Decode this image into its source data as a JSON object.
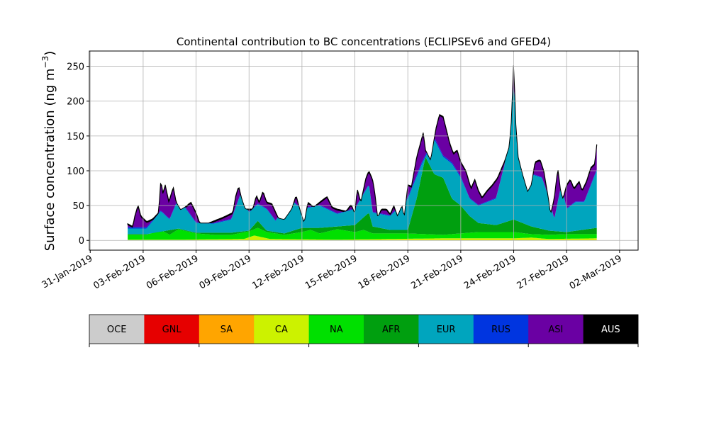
{
  "chart_data": {
    "type": "area",
    "title": "Continental contribution to BC concentrations (ECLIPSEv6 and GFED4)",
    "ylabel_main": "Surface concentration (ng m",
    "ylabel_sup": "−3",
    "ylabel_close": ")",
    "xlabel": "",
    "ylim": [
      -14,
      272
    ],
    "xlim_days": [
      "31-Jan-2019",
      "02-Mar-2019"
    ],
    "grid": true,
    "y_ticks": [
      0,
      50,
      100,
      150,
      200,
      250
    ],
    "x_ticks": [
      "31-Jan-2019",
      "03-Feb-2019",
      "06-Feb-2019",
      "09-Feb-2019",
      "12-Feb-2019",
      "15-Feb-2019",
      "18-Feb-2019",
      "21-Feb-2019",
      "24-Feb-2019",
      "27-Feb-2019",
      "02-Mar-2019"
    ],
    "x_tick_days": [
      0,
      3,
      6,
      9,
      12,
      15,
      18,
      21,
      24,
      27,
      30
    ],
    "x_day0": "31-Jan-2019",
    "series_order": [
      "CA",
      "NA",
      "AFR",
      "EUR",
      "RUS",
      "ASI",
      "AUS"
    ],
    "legend": [
      {
        "name": "OCE",
        "color": "#cccccc"
      },
      {
        "name": "GNL",
        "color": "#e60000"
      },
      {
        "name": "SA",
        "color": "#ffa500"
      },
      {
        "name": "CA",
        "color": "#ccf200"
      },
      {
        "name": "NA",
        "color": "#00e000"
      },
      {
        "name": "AFR",
        "color": "#009f0f"
      },
      {
        "name": "EUR",
        "color": "#00a5be"
      },
      {
        "name": "RUS",
        "color": "#0035e0"
      },
      {
        "name": "ASI",
        "color": "#6a00a3"
      },
      {
        "name": "AUS",
        "color": "#000000"
      }
    ],
    "stack_top_keypoints": [
      [
        "02-Feb-2019 03:00",
        24
      ],
      [
        "02-Feb-2019 10:00",
        20
      ],
      [
        "02-Feb-2019 12:00",
        33
      ],
      [
        "02-Feb-2019 17:00",
        51
      ],
      [
        "02-Feb-2019 21:00",
        35
      ],
      [
        "03-Feb-2019 05:00",
        27
      ],
      [
        "03-Feb-2019 13:00",
        31
      ],
      [
        "03-Feb-2019 21:00",
        40
      ],
      [
        "04-Feb-2019 00:00",
        87
      ],
      [
        "04-Feb-2019 03:00",
        68
      ],
      [
        "04-Feb-2019 06:00",
        80
      ],
      [
        "04-Feb-2019 11:00",
        56
      ],
      [
        "04-Feb-2019 17:00",
        77
      ],
      [
        "04-Feb-2019 21:00",
        55
      ],
      [
        "05-Feb-2019 03:00",
        44
      ],
      [
        "05-Feb-2019 09:00",
        48
      ],
      [
        "05-Feb-2019 17:00",
        55
      ],
      [
        "06-Feb-2019 00:00",
        40
      ],
      [
        "06-Feb-2019 05:00",
        25
      ],
      [
        "06-Feb-2019 17:00",
        25
      ],
      [
        "07-Feb-2019 12:00",
        33
      ],
      [
        "08-Feb-2019 02:00",
        40
      ],
      [
        "08-Feb-2019 06:00",
        65
      ],
      [
        "08-Feb-2019 10:00",
        78
      ],
      [
        "08-Feb-2019 14:00",
        60
      ],
      [
        "08-Feb-2019 19:00",
        45
      ],
      [
        "09-Feb-2019 05:00",
        45
      ],
      [
        "09-Feb-2019 10:00",
        65
      ],
      [
        "09-Feb-2019 14:00",
        55
      ],
      [
        "09-Feb-2019 19:00",
        71
      ],
      [
        "10-Feb-2019 00:00",
        55
      ],
      [
        "10-Feb-2019 07:00",
        53
      ],
      [
        "10-Feb-2019 16:00",
        32
      ],
      [
        "11-Feb-2019 00:00",
        30
      ],
      [
        "11-Feb-2019 10:00",
        45
      ],
      [
        "11-Feb-2019 16:00",
        65
      ],
      [
        "11-Feb-2019 21:00",
        45
      ],
      [
        "12-Feb-2019 03:00",
        25
      ],
      [
        "12-Feb-2019 08:00",
        55
      ],
      [
        "12-Feb-2019 16:00",
        48
      ],
      [
        "13-Feb-2019 00:00",
        55
      ],
      [
        "13-Feb-2019 10:00",
        63
      ],
      [
        "13-Feb-2019 17:00",
        48
      ],
      [
        "14-Feb-2019 00:00",
        45
      ],
      [
        "14-Feb-2019 12:00",
        42
      ],
      [
        "14-Feb-2019 19:00",
        52
      ],
      [
        "15-Feb-2019 00:00",
        38
      ],
      [
        "15-Feb-2019 03:00",
        75
      ],
      [
        "15-Feb-2019 08:00",
        55
      ],
      [
        "15-Feb-2019 15:00",
        90
      ],
      [
        "15-Feb-2019 19:00",
        100
      ],
      [
        "16-Feb-2019 00:00",
        88
      ],
      [
        "16-Feb-2019 03:00",
        70
      ],
      [
        "16-Feb-2019 07:00",
        33
      ],
      [
        "16-Feb-2019 12:00",
        45
      ],
      [
        "16-Feb-2019 19:00",
        45
      ],
      [
        "17-Feb-2019 00:00",
        38
      ],
      [
        "17-Feb-2019 05:00",
        50
      ],
      [
        "17-Feb-2019 10:00",
        35
      ],
      [
        "17-Feb-2019 16:00",
        50
      ],
      [
        "17-Feb-2019 19:00",
        33
      ],
      [
        "18-Feb-2019 00:00",
        80
      ],
      [
        "18-Feb-2019 05:00",
        78
      ],
      [
        "18-Feb-2019 12:00",
        120
      ],
      [
        "18-Feb-2019 21:00",
        155
      ],
      [
        "19-Feb-2019 00:00",
        130
      ],
      [
        "19-Feb-2019 07:00",
        115
      ],
      [
        "19-Feb-2019 14:00",
        160
      ],
      [
        "19-Feb-2019 19:00",
        181
      ],
      [
        "20-Feb-2019 00:00",
        178
      ],
      [
        "20-Feb-2019 09:00",
        140
      ],
      [
        "20-Feb-2019 14:00",
        125
      ],
      [
        "20-Feb-2019 19:00",
        130
      ],
      [
        "21-Feb-2019 00:00",
        113
      ],
      [
        "21-Feb-2019 07:00",
        100
      ],
      [
        "21-Feb-2019 14:00",
        75
      ],
      [
        "21-Feb-2019 19:00",
        88
      ],
      [
        "22-Feb-2019 00:00",
        72
      ],
      [
        "22-Feb-2019 05:00",
        62
      ],
      [
        "22-Feb-2019 12:00",
        72
      ],
      [
        "22-Feb-2019 19:00",
        80
      ],
      [
        "23-Feb-2019 02:00",
        90
      ],
      [
        "23-Feb-2019 12:00",
        115
      ],
      [
        "23-Feb-2019 18:00",
        135
      ],
      [
        "23-Feb-2019 21:00",
        175
      ],
      [
        "24-Feb-2019 00:00",
        258
      ],
      [
        "24-Feb-2019 03:00",
        165
      ],
      [
        "24-Feb-2019 06:00",
        120
      ],
      [
        "24-Feb-2019 12:00",
        95
      ],
      [
        "24-Feb-2019 19:00",
        70
      ],
      [
        "25-Feb-2019 00:00",
        80
      ],
      [
        "25-Feb-2019 05:00",
        113
      ],
      [
        "25-Feb-2019 12:00",
        116
      ],
      [
        "25-Feb-2019 17:00",
        100
      ],
      [
        "26-Feb-2019 00:00",
        55
      ],
      [
        "26-Feb-2019 02:00",
        37
      ],
      [
        "26-Feb-2019 07:00",
        60
      ],
      [
        "26-Feb-2019 12:00",
        104
      ],
      [
        "26-Feb-2019 16:00",
        70
      ],
      [
        "26-Feb-2019 19:00",
        60
      ],
      [
        "27-Feb-2019 00:00",
        80
      ],
      [
        "27-Feb-2019 05:00",
        88
      ],
      [
        "27-Feb-2019 10:00",
        75
      ],
      [
        "27-Feb-2019 17:00",
        85
      ],
      [
        "27-Feb-2019 21:00",
        72
      ],
      [
        "28-Feb-2019 03:00",
        85
      ],
      [
        "28-Feb-2019 09:00",
        105
      ],
      [
        "28-Feb-2019 14:00",
        110
      ],
      [
        "28-Feb-2019 17:00",
        138
      ]
    ],
    "series": [
      {
        "name": "CA",
        "values": [
          [
            3.2,
            1
          ],
          [
            5,
            1
          ],
          [
            8.7,
            2
          ],
          [
            9.3,
            7
          ],
          [
            10.2,
            2
          ],
          [
            14,
            1
          ],
          [
            17,
            2
          ],
          [
            20,
            3
          ],
          [
            24,
            3
          ],
          [
            25,
            4
          ],
          [
            26,
            2
          ],
          [
            28.7,
            3
          ]
        ]
      },
      {
        "name": "NA",
        "values": [
          [
            3.2,
            8
          ],
          [
            4.0,
            15
          ],
          [
            4.5,
            8
          ],
          [
            5,
            16
          ],
          [
            6,
            10
          ],
          [
            7,
            8
          ],
          [
            8,
            8
          ],
          [
            9,
            13
          ],
          [
            9.5,
            18
          ],
          [
            10,
            12
          ],
          [
            11,
            8
          ],
          [
            12,
            12
          ],
          [
            12.5,
            15
          ],
          [
            13,
            10
          ],
          [
            14,
            16
          ],
          [
            15,
            12
          ],
          [
            15.5,
            15
          ],
          [
            16,
            10
          ],
          [
            18,
            10
          ],
          [
            20,
            8
          ],
          [
            21,
            10
          ],
          [
            22,
            12
          ],
          [
            23,
            12
          ],
          [
            24,
            12
          ],
          [
            25,
            9
          ],
          [
            26,
            8
          ],
          [
            27,
            9
          ],
          [
            28.7,
            9
          ]
        ]
      },
      {
        "name": "AFR",
        "values": [
          [
            3.2,
            9
          ],
          [
            5,
            17
          ],
          [
            6,
            11
          ],
          [
            8,
            11
          ],
          [
            9,
            14
          ],
          [
            9.5,
            28
          ],
          [
            10,
            14
          ],
          [
            11,
            10
          ],
          [
            12,
            18
          ],
          [
            13,
            18
          ],
          [
            14,
            20
          ],
          [
            15,
            22
          ],
          [
            15.8,
            40
          ],
          [
            16,
            20
          ],
          [
            17,
            15
          ],
          [
            18,
            15
          ],
          [
            18.5,
            60
          ],
          [
            19,
            120
          ],
          [
            19.5,
            95
          ],
          [
            20,
            90
          ],
          [
            20.5,
            60
          ],
          [
            21,
            50
          ],
          [
            21.5,
            35
          ],
          [
            22,
            25
          ],
          [
            23,
            22
          ],
          [
            24,
            30
          ],
          [
            24.5,
            25
          ],
          [
            25,
            20
          ],
          [
            26,
            14
          ],
          [
            27,
            12
          ],
          [
            28.7,
            18
          ]
        ]
      },
      {
        "name": "EUR",
        "values": [
          [
            3.2,
            17
          ],
          [
            4,
            42
          ],
          [
            4.5,
            30
          ],
          [
            5,
            60
          ],
          [
            6,
            25
          ],
          [
            7,
            24
          ],
          [
            8,
            30
          ],
          [
            8.5,
            65
          ],
          [
            9,
            40
          ],
          [
            9.5,
            52
          ],
          [
            10,
            45
          ],
          [
            10.5,
            28
          ],
          [
            11,
            45
          ],
          [
            11.5,
            55
          ],
          [
            12,
            45
          ],
          [
            13,
            50
          ],
          [
            14,
            38
          ],
          [
            15,
            45
          ],
          [
            15.8,
            80
          ],
          [
            16,
            40
          ],
          [
            17,
            35
          ],
          [
            18,
            60
          ],
          [
            18.8,
            110
          ],
          [
            19.5,
            145
          ],
          [
            20,
            120
          ],
          [
            20.5,
            110
          ],
          [
            21,
            90
          ],
          [
            21.5,
            60
          ],
          [
            22,
            50
          ],
          [
            23,
            60
          ],
          [
            23.5,
            110
          ],
          [
            24,
            220
          ],
          [
            24.3,
            140
          ],
          [
            24.7,
            80
          ],
          [
            25,
            95
          ],
          [
            25.6,
            90
          ],
          [
            26,
            60
          ],
          [
            26.3,
            30
          ],
          [
            26.7,
            80
          ],
          [
            27,
            45
          ],
          [
            27.5,
            55
          ],
          [
            28,
            55
          ],
          [
            28.7,
            100
          ]
        ]
      },
      {
        "name": "RUS",
        "values": [
          [
            3.2,
            19
          ],
          [
            4,
            43
          ],
          [
            4.5,
            31
          ],
          [
            5,
            62
          ],
          [
            6,
            26
          ],
          [
            7,
            25
          ],
          [
            8,
            31
          ],
          [
            8.5,
            66
          ],
          [
            9,
            41
          ],
          [
            9.5,
            53
          ],
          [
            10,
            46
          ],
          [
            10.5,
            29
          ],
          [
            11,
            46
          ],
          [
            11.5,
            56
          ],
          [
            12,
            46
          ],
          [
            13,
            51
          ],
          [
            14,
            39
          ],
          [
            15,
            46
          ],
          [
            15.8,
            81
          ],
          [
            16,
            41
          ],
          [
            17,
            36
          ],
          [
            18,
            62
          ],
          [
            18.8,
            113
          ],
          [
            19.5,
            148
          ],
          [
            20,
            122
          ],
          [
            20.5,
            112
          ],
          [
            21,
            92
          ],
          [
            21.5,
            61
          ],
          [
            22,
            51
          ],
          [
            23,
            61
          ],
          [
            23.5,
            111
          ],
          [
            24,
            222
          ],
          [
            24.3,
            141
          ],
          [
            24.7,
            81
          ],
          [
            25,
            96
          ],
          [
            25.6,
            91
          ],
          [
            26,
            61
          ],
          [
            26.3,
            31
          ],
          [
            26.7,
            81
          ],
          [
            27,
            46
          ],
          [
            27.5,
            56
          ],
          [
            28,
            56
          ],
          [
            28.7,
            102
          ]
        ]
      }
    ]
  },
  "colorbar": {
    "labels": [
      "OCE",
      "GNL",
      "SA",
      "CA",
      "NA",
      "AFR",
      "EUR",
      "RUS",
      "ASI",
      "AUS"
    ]
  }
}
